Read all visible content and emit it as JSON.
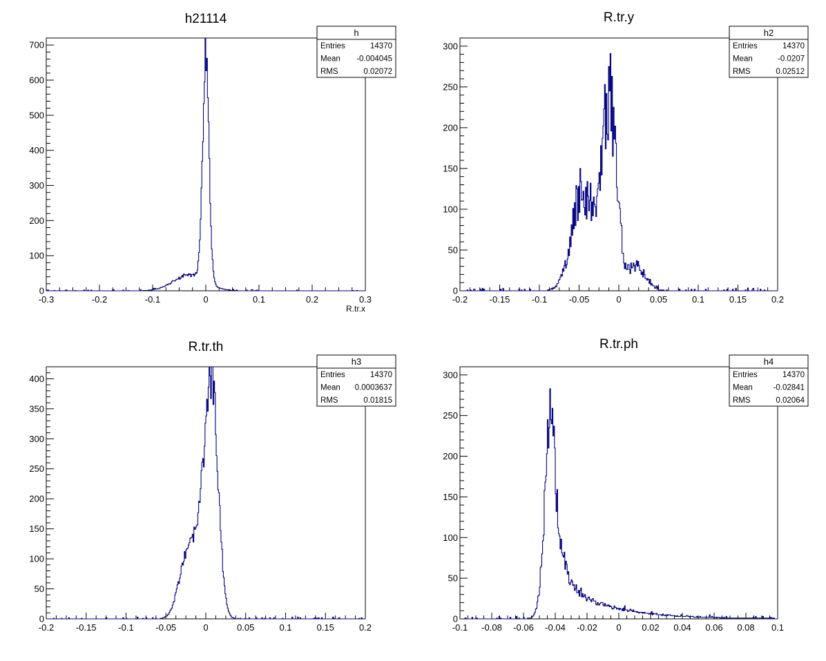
{
  "colors": {
    "histogram": "#000080",
    "frame": "#000000",
    "background": "#ffffff"
  },
  "chart_data": [
    {
      "type": "histogram",
      "title": "h21114",
      "xlabel": "R.tr.x",
      "ylabel": "",
      "xlim": [
        -0.3,
        0.3
      ],
      "ylim": [
        0,
        720
      ],
      "xticks": [
        "-0.3",
        "-0.2",
        "-0.1",
        "0",
        "0.1",
        "0.2",
        "0.3"
      ],
      "yticks": [
        "0",
        "100",
        "200",
        "300",
        "400",
        "500",
        "600",
        "700"
      ],
      "stats": {
        "name": "h",
        "entries_label": "Entries",
        "entries": "14370",
        "mean_label": "Mean",
        "mean": "-0.004045",
        "rms_label": "RMS",
        "rms": "0.02072"
      },
      "shape": {
        "mean": -0.001,
        "components": [
          [
            660,
            0.0,
            0.006
          ],
          [
            45,
            -0.03,
            0.03
          ]
        ],
        "nbins": 400,
        "base": 1,
        "noise": 0.12,
        "seed": 11
      }
    },
    {
      "type": "histogram",
      "title": "R.tr.y",
      "xlabel": "",
      "ylabel": "",
      "xlim": [
        -0.2,
        0.2
      ],
      "ylim": [
        0,
        310
      ],
      "xticks": [
        "-0.2",
        "-0.15",
        "-0.1",
        "-0.05",
        "0",
        "0.05",
        "0.1",
        "0.15",
        "0.2"
      ],
      "yticks": [
        "0",
        "50",
        "100",
        "150",
        "200",
        "250",
        "300"
      ],
      "stats": {
        "name": "h2",
        "entries_label": "Entries",
        "entries": "14370",
        "mean_label": "Mean",
        "mean": "-0.0207",
        "rms_label": "RMS",
        "rms": "0.02512"
      },
      "shape": {
        "components": [
          [
            125,
            -0.045,
            0.014
          ],
          [
            235,
            -0.012,
            0.009
          ],
          [
            30,
            0.022,
            0.012
          ]
        ],
        "nbins": 400,
        "base": 1,
        "noise": 0.28,
        "seed": 23
      }
    },
    {
      "type": "histogram",
      "title": "R.tr.th",
      "xlabel": "",
      "ylabel": "",
      "xlim": [
        -0.2,
        0.2
      ],
      "ylim": [
        0,
        420
      ],
      "xticks": [
        "-0.2",
        "-0.15",
        "-0.1",
        "-0.05",
        "0",
        "0.05",
        "0.1",
        "0.15",
        "0.2"
      ],
      "yticks": [
        "0",
        "50",
        "100",
        "150",
        "200",
        "250",
        "300",
        "350",
        "400"
      ],
      "stats": {
        "name": "h3",
        "entries_label": "Entries",
        "entries": "14370",
        "mean_label": "Mean",
        "mean": "0.0003637",
        "rms_label": "RMS",
        "rms": "0.01815"
      },
      "shape": {
        "components": [
          [
            345,
            0.008,
            0.008
          ],
          [
            90,
            -0.025,
            0.01
          ],
          [
            130,
            -0.005,
            0.01
          ]
        ],
        "nbins": 400,
        "base": 1,
        "noise": 0.1,
        "seed": 37
      }
    },
    {
      "type": "histogram",
      "title": "R.tr.ph",
      "xlabel": "",
      "ylabel": "",
      "xlim": [
        -0.1,
        0.1
      ],
      "ylim": [
        0,
        310
      ],
      "xticks": [
        "-0.1",
        "-0.08",
        "-0.06",
        "-0.04",
        "-0.02",
        "0",
        "0.02",
        "0.04",
        "0.06",
        "0.08",
        "0.1"
      ],
      "yticks": [
        "0",
        "50",
        "100",
        "150",
        "200",
        "250",
        "300"
      ],
      "stats": {
        "name": "h4",
        "entries_label": "Entries",
        "entries": "14370",
        "mean_label": "Mean",
        "mean": "-0.02841",
        "rms_label": "RMS",
        "rms": "0.02064"
      },
      "shape": {
        "skewed": {
          "peak": 280,
          "mu": -0.042,
          "left_sigma": 0.004,
          "tails": [
            [
              70,
              0.006
            ],
            [
              50,
              0.03
            ]
          ]
        },
        "nbins": 400,
        "base": 1,
        "noise": 0.15,
        "seed": 53
      }
    }
  ]
}
